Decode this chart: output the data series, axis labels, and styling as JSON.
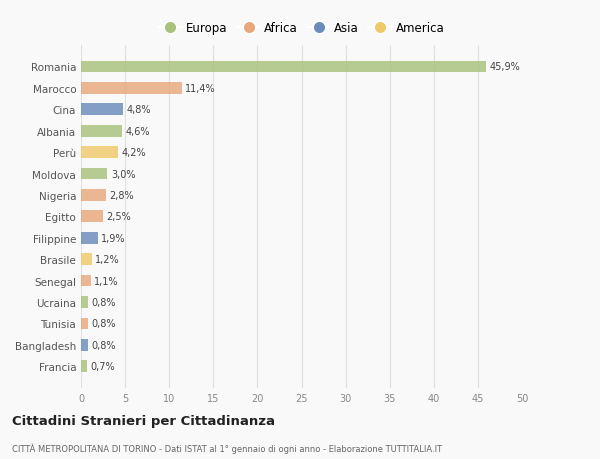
{
  "categories": [
    "Romania",
    "Marocco",
    "Cina",
    "Albania",
    "Perù",
    "Moldova",
    "Nigeria",
    "Egitto",
    "Filippine",
    "Brasile",
    "Senegal",
    "Ucraina",
    "Tunisia",
    "Bangladesh",
    "Francia"
  ],
  "values": [
    45.9,
    11.4,
    4.8,
    4.6,
    4.2,
    3.0,
    2.8,
    2.5,
    1.9,
    1.2,
    1.1,
    0.8,
    0.8,
    0.8,
    0.7
  ],
  "labels": [
    "45,9%",
    "11,4%",
    "4,8%",
    "4,6%",
    "4,2%",
    "3,0%",
    "2,8%",
    "2,5%",
    "1,9%",
    "1,2%",
    "1,1%",
    "0,8%",
    "0,8%",
    "0,8%",
    "0,7%"
  ],
  "colors": [
    "#a8c17c",
    "#e8a87c",
    "#6b8cba",
    "#a8c17c",
    "#f0c96b",
    "#a8c17c",
    "#e8a87c",
    "#e8a87c",
    "#6b8cba",
    "#f0c96b",
    "#e8a87c",
    "#a8c17c",
    "#e8a87c",
    "#6b8cba",
    "#a8c17c"
  ],
  "legend_labels": [
    "Europa",
    "Africa",
    "Asia",
    "America"
  ],
  "legend_colors": [
    "#a8c17c",
    "#e8a87c",
    "#6b8cba",
    "#f0c96b"
  ],
  "xlim": [
    0,
    50
  ],
  "xticks": [
    0,
    5,
    10,
    15,
    20,
    25,
    30,
    35,
    40,
    45,
    50
  ],
  "title": "Cittadini Stranieri per Cittadinanza",
  "subtitle": "CITTÀ METROPOLITANA DI TORINO - Dati ISTAT al 1° gennaio di ogni anno - Elaborazione TUTTITALIA.IT",
  "background_color": "#f9f9f9",
  "grid_color": "#e0e0e0"
}
